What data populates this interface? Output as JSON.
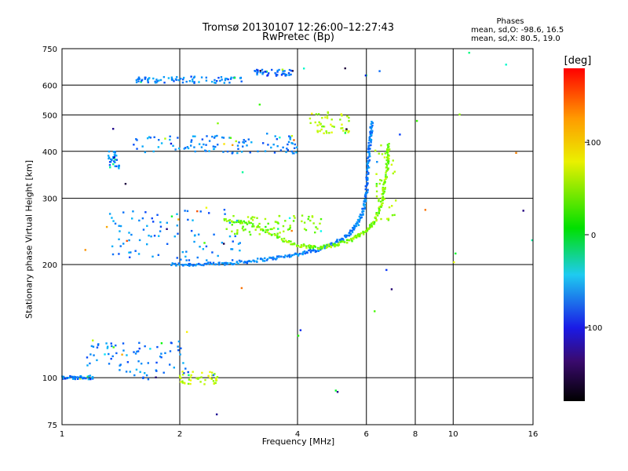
{
  "chart_data": {
    "type": "scatter",
    "title": "Tromsø 20130107 12:26:00–12:27:43",
    "subtitle": "RwPretec (Bp)",
    "xlabel": "Frequency [MHz]",
    "ylabel": "Stationary phase Virtual Height [km]",
    "x_scale": "log",
    "y_scale": "log",
    "xlim": [
      1,
      16
    ],
    "ylim": [
      75,
      750
    ],
    "x_ticks": [
      1,
      2,
      4,
      6,
      8,
      10,
      16
    ],
    "y_ticks": [
      75,
      100,
      200,
      300,
      400,
      500,
      600,
      750
    ],
    "grid": true,
    "phase_stats": {
      "title": "Phases",
      "line_o": "mean, sd,O: -98.6, 16.5",
      "line_x": "mean, sd,X:  80.5, 19.0"
    },
    "colorbar": {
      "unit": "[deg]",
      "ticks": [
        "100",
        "0",
        "-100"
      ],
      "tick_values": [
        100,
        0,
        -100
      ],
      "range": [
        -180,
        180
      ],
      "colormap": "rainbow"
    },
    "o_trace": [
      [
        1.9,
        200
      ],
      [
        2.2,
        200
      ],
      [
        2.6,
        201
      ],
      [
        3.0,
        204
      ],
      [
        3.5,
        208
      ],
      [
        4.0,
        213
      ],
      [
        4.5,
        219
      ],
      [
        5.0,
        228
      ],
      [
        5.4,
        240
      ],
      [
        5.7,
        257
      ],
      [
        5.9,
        280
      ],
      [
        6.0,
        310
      ],
      [
        6.05,
        350
      ],
      [
        6.1,
        400
      ],
      [
        6.15,
        440
      ],
      [
        6.2,
        480
      ]
    ],
    "x_trace": [
      [
        2.6,
        262
      ],
      [
        3.0,
        258
      ],
      [
        3.5,
        238
      ],
      [
        4.0,
        225
      ],
      [
        4.5,
        222
      ],
      [
        5.0,
        225
      ],
      [
        5.5,
        233
      ],
      [
        6.0,
        245
      ],
      [
        6.3,
        260
      ],
      [
        6.55,
        290
      ],
      [
        6.7,
        330
      ],
      [
        6.8,
        380
      ],
      [
        6.85,
        420
      ]
    ],
    "clusters": [
      {
        "x": [
          1.55,
          2.9
        ],
        "y": [
          607,
          632
        ],
        "phase": -100
      },
      {
        "x": [
          3.1,
          3.9
        ],
        "y": [
          635,
          660
        ],
        "phase": -110
      },
      {
        "x": [
          1.5,
          4.0
        ],
        "y": [
          395,
          440
        ],
        "phase": -100
      },
      {
        "x": [
          1.3,
          1.4
        ],
        "y": [
          360,
          400
        ],
        "phase": -100
      },
      {
        "x": [
          1.3,
          2.9
        ],
        "y": [
          205,
          280
        ],
        "phase": -100
      },
      {
        "x": [
          2.6,
          4.6
        ],
        "y": [
          240,
          270
        ],
        "phase": 60
      },
      {
        "x": [
          1.15,
          2.1
        ],
        "y": [
          99,
          125
        ],
        "phase": -100
      },
      {
        "x": [
          1.0,
          1.2
        ],
        "y": [
          99,
          101
        ],
        "phase": -100
      },
      {
        "x": [
          2.0,
          2.5
        ],
        "y": [
          96,
          104
        ],
        "phase": 80
      },
      {
        "x": [
          4.3,
          5.6
        ],
        "y": [
          445,
          510
        ],
        "phase": 80
      },
      {
        "x": [
          6.3,
          7.2
        ],
        "y": [
          260,
          420
        ],
        "phase": 70
      }
    ]
  }
}
